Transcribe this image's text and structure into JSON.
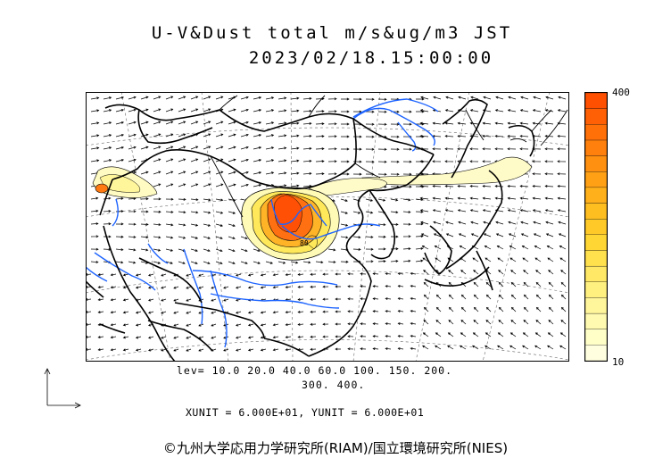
{
  "header": {
    "title": "U-V&Dust total m/s&ug/m3 JST",
    "datetime": "2023/02/18.15:00:00"
  },
  "colorbar": {
    "max_label": "400",
    "min_label": "10",
    "colors": [
      "#ffffe0",
      "#ffffc8",
      "#fffab0",
      "#fff59a",
      "#fff080",
      "#ffe866",
      "#ffe04d",
      "#ffd633",
      "#ffca28",
      "#ffbe20",
      "#ffb01a",
      "#ffa015",
      "#ff9010",
      "#ff800c",
      "#ff7008",
      "#ff6005",
      "#ff5002"
    ]
  },
  "contour_levels": {
    "line1": "lev= 10.0 20.0 40.0 60.0 100. 150. 200.",
    "line2": "300. 400."
  },
  "units_line": "XUNIT = 6.000E+01, YUNIT = 6.000E+01",
  "contour_label": "80",
  "credit": "©九州大学応用力学研究所(RIAM)/国立環境研究所(NIES)",
  "map_colors": {
    "coast": "#000000",
    "rivers": "#1e64ff",
    "grid": "#555555",
    "vectors": "#000000"
  }
}
